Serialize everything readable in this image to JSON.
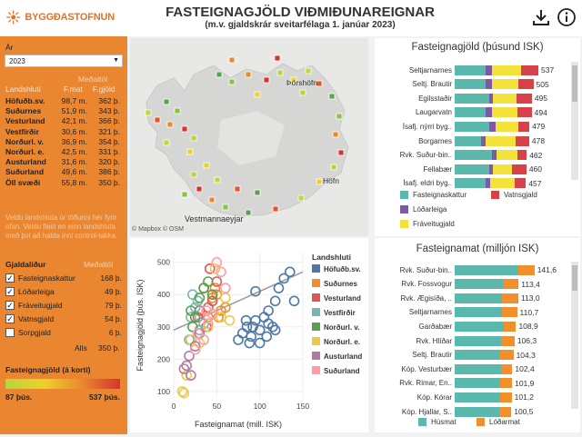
{
  "header": {
    "logo_text": "BYGGÐASTOFNUN",
    "title": "FASTEIGNAGJÖLD VIÐMIÐUNAREIGNAR",
    "subtitle": "(m.v. gjaldskrár sveitarfélaga 1. janúar 2023)",
    "download_icon": "download-icon",
    "info_icon": "info-icon"
  },
  "sidebar": {
    "year_label": "Ár",
    "year_value": "2023",
    "median_label": "Meðaltöl",
    "col_region": "Landshluti",
    "col_fmat": "F.mat",
    "col_fgjald": "F.gjöld",
    "regions": [
      {
        "name": "Höfuðb.sv.",
        "fmat": "98,7 m.",
        "fgjald": "362 þ."
      },
      {
        "name": "Suðurnes",
        "fmat": "51,9 m.",
        "fgjald": "343 þ."
      },
      {
        "name": "Vesturland",
        "fmat": "42,1 m.",
        "fgjald": "366 þ."
      },
      {
        "name": "Vestfirðir",
        "fmat": "30,6 m.",
        "fgjald": "321 þ."
      },
      {
        "name": "Norðurl. v.",
        "fmat": "36,9 m.",
        "fgjald": "354 þ."
      },
      {
        "name": "Norðurl. e.",
        "fmat": "42,5 m.",
        "fgjald": "331 þ."
      },
      {
        "name": "Austurland",
        "fmat": "31,6 m.",
        "fgjald": "320 þ."
      },
      {
        "name": "Suðurland",
        "fmat": "49,6 m.",
        "fgjald": "386 þ."
      },
      {
        "name": "Öll svæði",
        "fmat": "55,8 m.",
        "fgjald": "350 þ."
      }
    ],
    "hint": "Veldu landshluta úr töflunni hér fyrir ofan. Veldu fleiri en einn landshluta með því að halda inni control-takka.",
    "fees_label": "Gjaldaliður",
    "median_label2": "Meðaltöl",
    "fees": [
      {
        "name": "Fasteignaskattur",
        "value": "168 þ.",
        "checked": true
      },
      {
        "name": "Lóðarleiga",
        "value": "49 þ.",
        "checked": true
      },
      {
        "name": "Fráveitugjald",
        "value": "79 þ.",
        "checked": true
      },
      {
        "name": "Vatnsgjald",
        "value": "54 þ.",
        "checked": true
      },
      {
        "name": "Sorpgjald",
        "value": "6 þ.",
        "checked": false
      }
    ],
    "total_label": "Alls",
    "total_value": "350 þ.",
    "map_legend_title": "Fasteignagjöld (á korti)",
    "map_legend_min": "87 þús.",
    "map_legend_max": "537 þús."
  },
  "map": {
    "labels": [
      "Þórshöfn",
      "Höfn",
      "Vestmannaeyjar"
    ],
    "attribution": "© Mapbox © OSM"
  },
  "scatter": {
    "chart_data": {
      "type": "scatter",
      "xlabel": "Fasteignamat (mill. ISK)",
      "ylabel": "Fasteignagjöld (þús. ISK)",
      "xlim": [
        0,
        150
      ],
      "ylim": [
        80,
        530
      ],
      "xticks": [
        0,
        50,
        100,
        150
      ],
      "yticks": [
        100,
        200,
        300,
        400,
        500
      ],
      "legend_title": "Landshluti",
      "series": [
        {
          "name": "Höfuðb.sv.",
          "color": "#4e79a7",
          "points": [
            [
              80,
              280
            ],
            [
              85,
              300
            ],
            [
              90,
              270
            ],
            [
              95,
              320
            ],
            [
              100,
              290
            ],
            [
              105,
              330
            ],
            [
              110,
              350
            ],
            [
              115,
              300
            ],
            [
              118,
              380
            ],
            [
              122,
              420
            ],
            [
              128,
              450
            ],
            [
              135,
              470
            ],
            [
              140,
              380
            ],
            [
              95,
              410
            ],
            [
              88,
              250
            ],
            [
              75,
              260
            ],
            [
              100,
              250
            ],
            [
              108,
              270
            ],
            [
              92,
              300
            ],
            [
              84,
              320
            ],
            [
              110,
              310
            ],
            [
              118,
              290
            ]
          ]
        },
        {
          "name": "Suðurnes",
          "color": "#f28e2b",
          "points": [
            [
              45,
              390
            ],
            [
              50,
              400
            ],
            [
              55,
              350
            ],
            [
              40,
              330
            ],
            [
              60,
              360
            ],
            [
              48,
              420
            ],
            [
              52,
              330
            ]
          ]
        },
        {
          "name": "Vesturland",
          "color": "#e15759",
          "points": [
            [
              35,
              420
            ],
            [
              40,
              360
            ],
            [
              45,
              380
            ],
            [
              30,
              350
            ],
            [
              42,
              480
            ],
            [
              50,
              440
            ],
            [
              38,
              300
            ],
            [
              28,
              330
            ]
          ]
        },
        {
          "name": "Vestfirðir",
          "color": "#76b7b2",
          "points": [
            [
              20,
              330
            ],
            [
              25,
              360
            ],
            [
              30,
              290
            ],
            [
              18,
              260
            ],
            [
              35,
              310
            ],
            [
              22,
              400
            ],
            [
              28,
              380
            ]
          ]
        },
        {
          "name": "Norðurl. v.",
          "color": "#59a14f",
          "points": [
            [
              20,
              350
            ],
            [
              25,
              330
            ],
            [
              30,
              390
            ],
            [
              35,
              420
            ],
            [
              40,
              440
            ],
            [
              45,
              400
            ],
            [
              22,
              300
            ]
          ]
        },
        {
          "name": "Norðurl. e.",
          "color": "#edc948",
          "points": [
            [
              10,
              100
            ],
            [
              15,
              150
            ],
            [
              20,
              260
            ],
            [
              30,
              250
            ],
            [
              40,
              300
            ],
            [
              55,
              330
            ],
            [
              60,
              390
            ],
            [
              48,
              480
            ],
            [
              12,
              95
            ],
            [
              65,
              320
            ]
          ]
        },
        {
          "name": "Austurland",
          "color": "#b07aa1",
          "points": [
            [
              15,
              180
            ],
            [
              18,
              210
            ],
            [
              25,
              240
            ],
            [
              20,
              150
            ],
            [
              30,
              280
            ],
            [
              12,
              170
            ]
          ]
        },
        {
          "name": "Suðurland",
          "color": "#ff9da7",
          "points": [
            [
              25,
              230
            ],
            [
              35,
              260
            ],
            [
              40,
              310
            ],
            [
              45,
              340
            ],
            [
              50,
              500
            ],
            [
              55,
              470
            ],
            [
              60,
              420
            ],
            [
              38,
              350
            ],
            [
              28,
              280
            ]
          ]
        }
      ],
      "trend": [
        [
          0,
          290
        ],
        [
          150,
          470
        ]
      ]
    }
  },
  "fees_chart": {
    "title": "Fasteignagjöld (þúsund ISK)",
    "chart_data": {
      "type": "bar",
      "stacked": true,
      "categories": [
        "Seltjarnarnes",
        "Seltj. Brautir",
        "Egilsstaðir",
        "Laugarvatn",
        "Ísafj. nýrri byg..",
        "Borgarnes",
        "Rvk. Suður-bin..",
        "Fellabær",
        "Ísafj. eldri byg.."
      ],
      "totals": [
        537,
        505,
        495,
        494,
        479,
        478,
        462,
        460,
        457
      ],
      "series": [
        {
          "name": "Fasteignaskattur",
          "color": "#5bb8ad",
          "values": [
            200,
            200,
            220,
            200,
            220,
            170,
            240,
            220,
            200
          ]
        },
        {
          "name": "Lóðarleiga",
          "color": "#7b5aa6",
          "values": [
            40,
            40,
            25,
            40,
            40,
            30,
            30,
            25,
            30
          ]
        },
        {
          "name": "Fráveitugjald",
          "color": "#f2e23a",
          "values": [
            185,
            170,
            150,
            164,
            149,
            190,
            132,
            120,
            157
          ]
        },
        {
          "name": "Vatnsgjald",
          "color": "#d7424a",
          "values": [
            112,
            95,
            100,
            90,
            70,
            88,
            60,
            95,
            70
          ]
        }
      ],
      "xlim": [
        0,
        560
      ]
    }
  },
  "fees_legend": [
    "Fasteignaskattur",
    "Vatnsgjald",
    "Lóðarleiga",
    "Fráveitugjald"
  ],
  "valuation_chart": {
    "title": "Fasteignamat (milljón ISK)",
    "chart_data": {
      "type": "bar",
      "stacked": true,
      "categories": [
        "Rvk. Suður-bin..",
        "Rvk. Fossvogur",
        "Rvk. Ægisíða, ..",
        "Seltjarnarnes",
        "Garðabær",
        "Rvk. Hlíðar",
        "Seltj. Brautir",
        "Kóp. Vesturbær",
        "Rvk. Rimar, En..",
        "Kóp. Kórar",
        "Kóp. Hjallar, S.."
      ],
      "totals": [
        141.6,
        113.4,
        113.0,
        110.7,
        108.9,
        106.3,
        104.3,
        102.4,
        101.9,
        101.2,
        100.5
      ],
      "total_labels": [
        "141,6",
        "113,4",
        "113,0",
        "110,7",
        "108,9",
        "106,3",
        "104,3",
        "102,4",
        "101,9",
        "101,2",
        "100,5"
      ],
      "series": [
        {
          "name": "Húsmat",
          "color": "#5bb8ad",
          "values": [
            112.6,
            85.4,
            84.0,
            84.7,
            86.9,
            82.3,
            80.3,
            82.4,
            80.9,
            80.2,
            79.5
          ]
        },
        {
          "name": "Lóðarmat",
          "color": "#f28e2b",
          "values": [
            29,
            28,
            29,
            26,
            22,
            24,
            24,
            20,
            21,
            21,
            21
          ]
        }
      ],
      "xlim": [
        0,
        155
      ]
    }
  },
  "valuation_legend": [
    "Húsmat",
    "Lóðarmat"
  ]
}
